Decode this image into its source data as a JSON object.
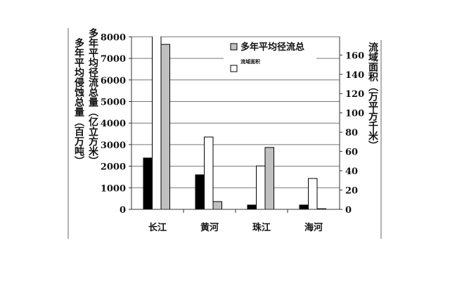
{
  "chart_data": {
    "type": "bar",
    "categories": [
      "长江",
      "黄河",
      "珠江",
      "海河"
    ],
    "left_axis": {
      "label_outer": "多年平均侵蚀总量（百万吨）",
      "label_inner": "多年平均径流总量（亿立方米）",
      "ylim": [
        0,
        8000
      ],
      "ticks": [
        0,
        1000,
        2000,
        3000,
        4000,
        5000,
        6000,
        7000,
        8000
      ]
    },
    "right_axis": {
      "label": "流域面积（万平方千米）",
      "ylim": [
        0,
        174
      ],
      "ticks": [
        0,
        20,
        40,
        60,
        80,
        100,
        120,
        140,
        160
      ]
    },
    "series": [
      {
        "color": "#000000",
        "axis": "left",
        "values": [
          2380,
          1600,
          200,
          200
        ]
      },
      {
        "name": "流域面积",
        "color": "#ffffff",
        "axis": "right",
        "values": [
          180,
          75,
          45,
          32
        ]
      },
      {
        "name": "多年平均径流总",
        "color": "#c0c0c0",
        "axis": "left",
        "values": [
          7650,
          360,
          2870,
          30
        ]
      }
    ],
    "legend": {
      "placement": "top-right",
      "entries": [
        "多年平均径流总",
        "流域面积"
      ]
    },
    "grid": true
  }
}
